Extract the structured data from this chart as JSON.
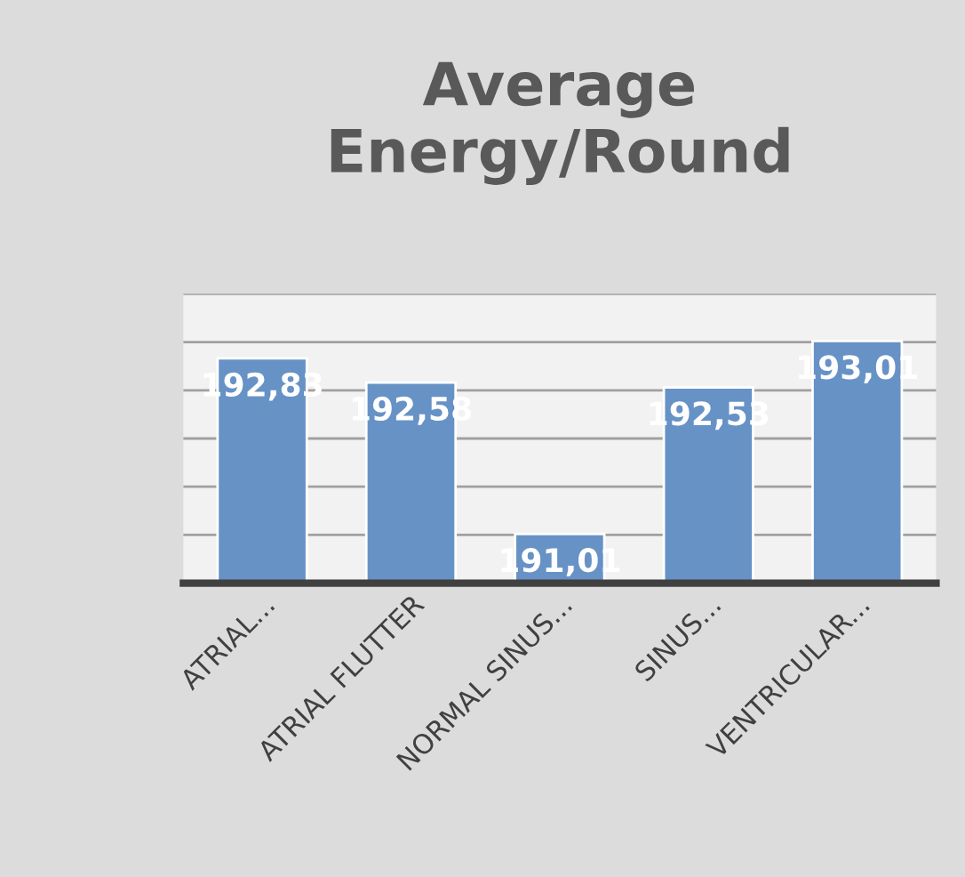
{
  "chart_data": {
    "type": "bar",
    "title": "Average\nEnergy/Round",
    "categories": [
      "ATRIAL...",
      "ATRIAL FLUTTER",
      "NORMAL SINUS...",
      "SINUS...",
      "VENTRICULAR..."
    ],
    "values": [
      192.83,
      192.58,
      191.01,
      192.53,
      193.01
    ],
    "value_labels": [
      "192,83",
      "192,58",
      "191,01",
      "192,53",
      "193,01"
    ],
    "color": "#6792c6",
    "ylim": [
      190.5,
      193.5
    ],
    "yticks": [
      {
        "value": 190.5,
        "label": null
      },
      {
        "value": 191,
        "label": null
      },
      {
        "value": 191.5,
        "label": null
      },
      {
        "value": 192,
        "label": null
      },
      {
        "value": 192.5,
        "label": null
      },
      {
        "value": 193,
        "label": null
      },
      {
        "value": 193.5,
        "label": null
      }
    ],
    "tick_labels": "x",
    "grid": "y"
  }
}
